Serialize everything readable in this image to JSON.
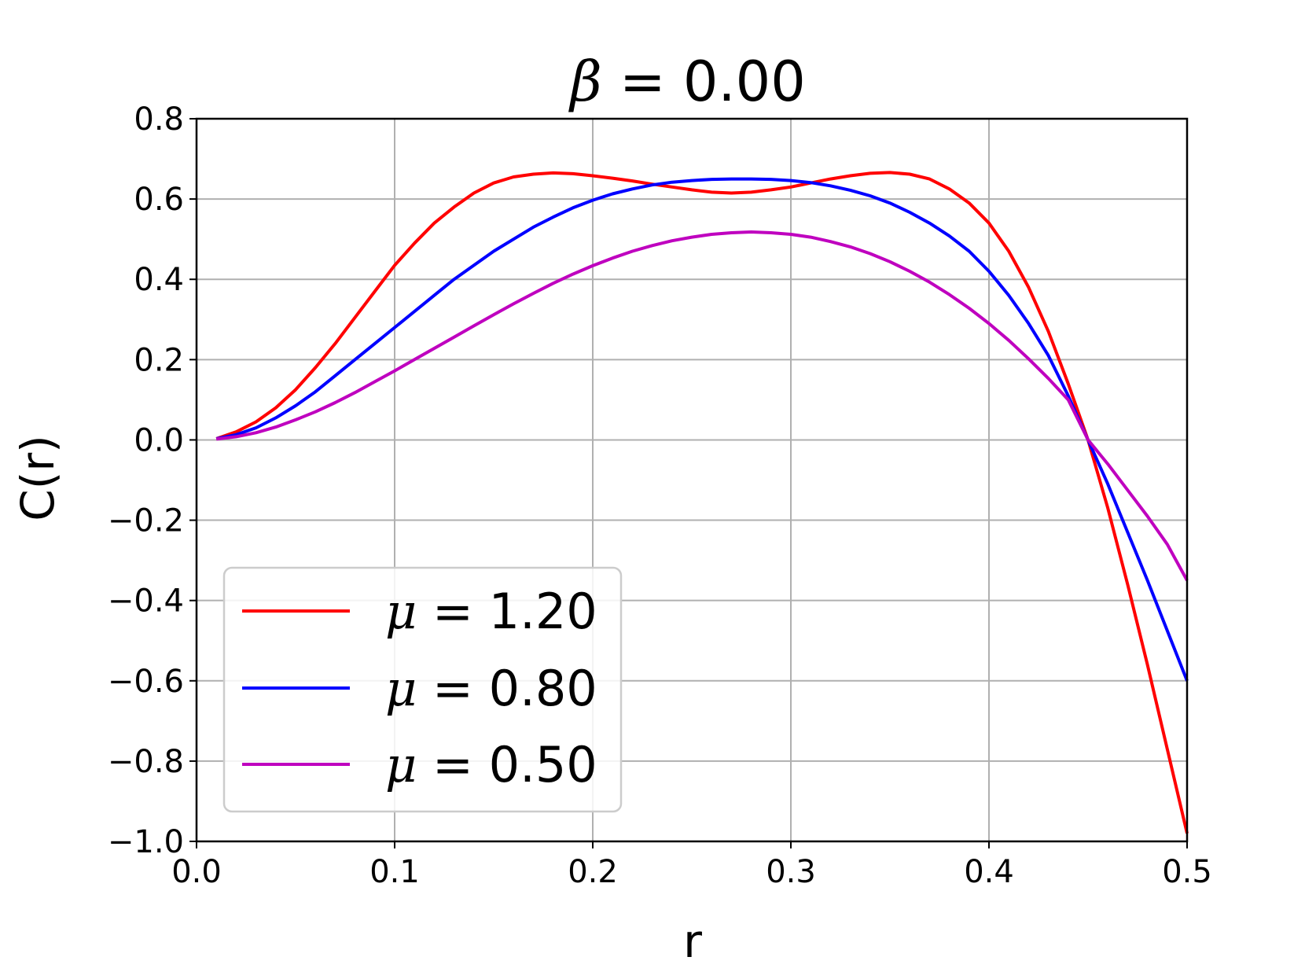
{
  "chart_data": {
    "type": "line",
    "title": {
      "symbol": "β",
      "rest": " = 0.00"
    },
    "xlabel": "r",
    "ylabel": "C(r)",
    "xlim": [
      0.0,
      0.5
    ],
    "ylim": [
      -1.0,
      0.8
    ],
    "grid": true,
    "legend_position": "lower-left",
    "x_ticks": [
      "0.0",
      "0.1",
      "0.2",
      "0.3",
      "0.4",
      "0.5"
    ],
    "y_ticks": [
      "0.8",
      "0.6",
      "0.4",
      "0.2",
      "0.0",
      "−0.2",
      "−0.4",
      "−0.6",
      "−0.8",
      "−1.0"
    ],
    "x": [
      0.01,
      0.02,
      0.03,
      0.04,
      0.05,
      0.06,
      0.07,
      0.08,
      0.09,
      0.1,
      0.11,
      0.12,
      0.13,
      0.14,
      0.15,
      0.16,
      0.17,
      0.18,
      0.19,
      0.2,
      0.21,
      0.22,
      0.23,
      0.24,
      0.25,
      0.26,
      0.27,
      0.28,
      0.29,
      0.3,
      0.31,
      0.32,
      0.33,
      0.34,
      0.35,
      0.36,
      0.37,
      0.38,
      0.39,
      0.4,
      0.41,
      0.42,
      0.43,
      0.44,
      0.45,
      0.46,
      0.47,
      0.48,
      0.49,
      0.5
    ],
    "series": [
      {
        "name": {
          "symbol": "μ",
          "rest": " = 1.20"
        },
        "color": "#ff0000",
        "values": [
          0.003,
          0.02,
          0.045,
          0.08,
          0.125,
          0.18,
          0.24,
          0.305,
          0.37,
          0.435,
          0.49,
          0.54,
          0.58,
          0.615,
          0.64,
          0.655,
          0.662,
          0.665,
          0.663,
          0.658,
          0.652,
          0.645,
          0.637,
          0.63,
          0.623,
          0.617,
          0.615,
          0.617,
          0.623,
          0.63,
          0.64,
          0.65,
          0.658,
          0.664,
          0.666,
          0.662,
          0.65,
          0.625,
          0.59,
          0.54,
          0.47,
          0.38,
          0.27,
          0.14,
          0.0,
          -0.17,
          -0.36,
          -0.56,
          -0.77,
          -0.98
        ]
      },
      {
        "name": {
          "symbol": "μ",
          "rest": " = 0.80"
        },
        "color": "#0000ff",
        "values": [
          0.003,
          0.013,
          0.03,
          0.055,
          0.085,
          0.12,
          0.16,
          0.2,
          0.24,
          0.28,
          0.32,
          0.36,
          0.4,
          0.435,
          0.47,
          0.5,
          0.53,
          0.555,
          0.578,
          0.597,
          0.613,
          0.625,
          0.635,
          0.642,
          0.646,
          0.649,
          0.65,
          0.65,
          0.649,
          0.646,
          0.641,
          0.633,
          0.622,
          0.608,
          0.59,
          0.567,
          0.54,
          0.508,
          0.47,
          0.42,
          0.36,
          0.29,
          0.21,
          0.11,
          0.0,
          -0.11,
          -0.23,
          -0.35,
          -0.475,
          -0.6
        ]
      },
      {
        "name": {
          "symbol": "μ",
          "rest": " = 0.50"
        },
        "color": "#bf00bf",
        "values": [
          0.002,
          0.008,
          0.018,
          0.032,
          0.05,
          0.07,
          0.093,
          0.118,
          0.145,
          0.172,
          0.2,
          0.228,
          0.256,
          0.284,
          0.312,
          0.339,
          0.365,
          0.39,
          0.413,
          0.434,
          0.453,
          0.47,
          0.484,
          0.496,
          0.505,
          0.512,
          0.516,
          0.518,
          0.516,
          0.512,
          0.505,
          0.494,
          0.481,
          0.464,
          0.444,
          0.42,
          0.393,
          0.362,
          0.328,
          0.29,
          0.248,
          0.202,
          0.153,
          0.1,
          0.0,
          -0.06,
          -0.125,
          -0.19,
          -0.26,
          -0.35
        ]
      }
    ]
  }
}
